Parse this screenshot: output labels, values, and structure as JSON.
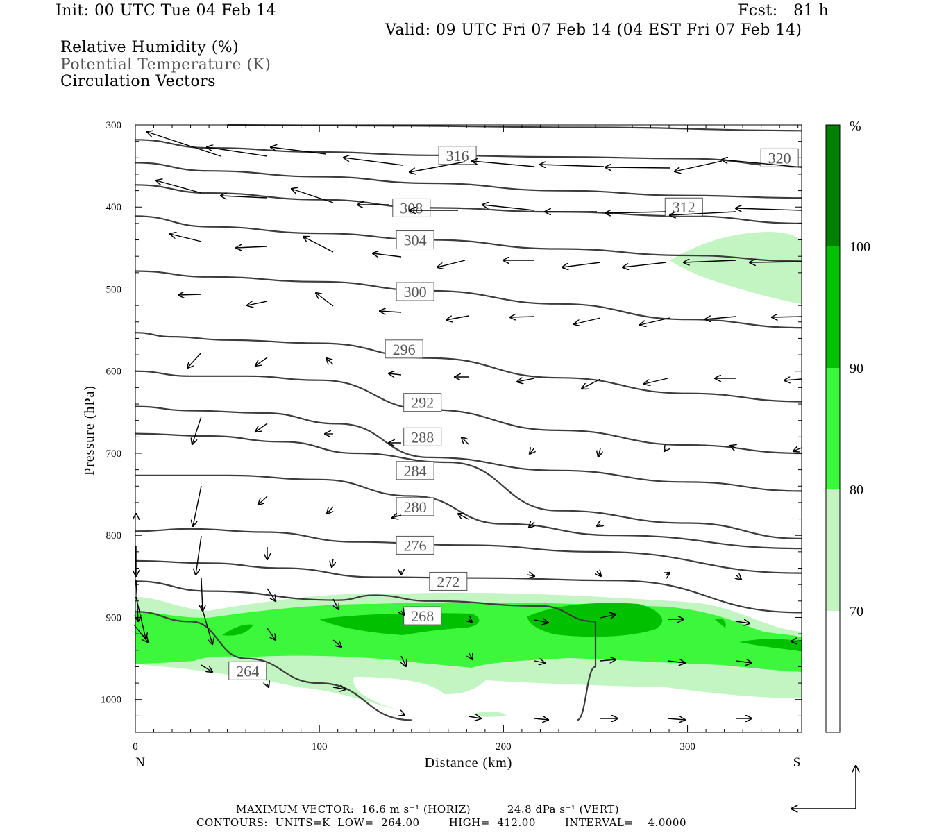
{
  "header": {
    "init": "Init: 00 UTC Tue 04 Feb 14",
    "fcst": "Fcst:   81 h",
    "valid": "Valid: 09 UTC Fri 07 Feb 14 (04 EST Fri 07 Feb 14)"
  },
  "fields": {
    "rh": "Relative Humidity (%)",
    "theta": "Potential Temperature (K)",
    "vectors": "Circulation Vectors"
  },
  "footer": {
    "max_vector": "MAXIMUM VECTOR:  16.6 m s⁻¹ (HORIZ)          24.8 dPa s⁻¹ (VERT)",
    "contours": "CONTOURS:  UNITS=K  LOW=  264.00        HIGH=  412.00        INTERVAL=    4.0000"
  },
  "colors": {
    "rh_70": "#c2f5c2",
    "rh_80": "#3df73d",
    "rh_90": "#00c000",
    "rh_100": "#008000",
    "contour": "#3c3c3c"
  },
  "chart_data": {
    "type": "cross-section",
    "xlabel": "Distance (km)",
    "ylabel": "Pressure (hPa)",
    "xlim": [
      0,
      362
    ],
    "ylim": [
      1040,
      300
    ],
    "x_ticks": [
      0,
      100,
      200,
      300
    ],
    "y_ticks": [
      300,
      400,
      500,
      600,
      700,
      800,
      900,
      1000
    ],
    "x_end_labels": {
      "left": "N",
      "right": "S"
    },
    "colorbar": {
      "unit": "%",
      "levels": [
        70,
        80,
        90,
        100
      ]
    },
    "theta_contours": [
      {
        "value": 320,
        "label": "320",
        "points": [
          [
            50,
            300
          ],
          [
            130,
            301
          ],
          [
            250,
            303
          ],
          [
            362,
            307
          ]
        ]
      },
      {
        "value": 316,
        "label": "316",
        "points": [
          [
            0,
            318
          ],
          [
            40,
            328
          ],
          [
            100,
            333
          ],
          [
            160,
            337
          ],
          [
            230,
            339
          ],
          [
            300,
            341
          ],
          [
            362,
            351
          ]
        ]
      },
      {
        "value": 312,
        "label": "312",
        "points": [
          [
            0,
            346
          ],
          [
            40,
            356
          ],
          [
            100,
            363
          ],
          [
            160,
            371
          ],
          [
            230,
            380
          ],
          [
            300,
            386
          ],
          [
            362,
            389
          ]
        ]
      },
      {
        "value": 308,
        "label": "308",
        "points": [
          [
            0,
            373
          ],
          [
            40,
            383
          ],
          [
            100,
            391
          ],
          [
            160,
            401
          ],
          [
            230,
            406
          ],
          [
            300,
            411
          ],
          [
            362,
            420
          ]
        ]
      },
      {
        "value": 304,
        "label": "304",
        "points": [
          [
            0,
            411
          ],
          [
            40,
            424
          ],
          [
            100,
            432
          ],
          [
            160,
            440
          ],
          [
            230,
            451
          ],
          [
            300,
            459
          ],
          [
            362,
            466
          ]
        ]
      },
      {
        "value": 300,
        "label": "300",
        "points": [
          [
            0,
            478
          ],
          [
            40,
            485
          ],
          [
            100,
            491
          ],
          [
            160,
            502
          ],
          [
            230,
            518
          ],
          [
            300,
            537
          ],
          [
            362,
            547
          ]
        ]
      },
      {
        "value": 296,
        "label": "296",
        "points": [
          [
            0,
            553
          ],
          [
            20,
            558
          ],
          [
            50,
            562
          ],
          [
            100,
            566
          ],
          [
            160,
            584
          ],
          [
            230,
            608
          ],
          [
            300,
            627
          ],
          [
            362,
            637
          ]
        ]
      },
      {
        "value": 292,
        "label": "292",
        "points": [
          [
            0,
            600
          ],
          [
            30,
            606
          ],
          [
            60,
            606
          ],
          [
            100,
            611
          ],
          [
            160,
            647
          ],
          [
            230,
            672
          ],
          [
            300,
            690
          ],
          [
            362,
            700
          ]
        ]
      },
      {
        "value": 288,
        "label": "288",
        "points": [
          [
            0,
            643
          ],
          [
            30,
            648
          ],
          [
            70,
            651
          ],
          [
            110,
            664
          ],
          [
            160,
            705
          ],
          [
            230,
            721
          ],
          [
            300,
            735
          ],
          [
            362,
            746
          ]
        ]
      },
      {
        "value": 284,
        "label": "284",
        "points": [
          [
            0,
            676
          ],
          [
            40,
            679
          ],
          [
            80,
            686
          ],
          [
            120,
            700
          ],
          [
            170,
            711
          ],
          [
            230,
            770
          ],
          [
            300,
            785
          ],
          [
            362,
            804
          ]
        ]
      },
      {
        "value": 280,
        "label": "280",
        "points": [
          [
            0,
            727
          ],
          [
            50,
            727
          ],
          [
            100,
            732
          ],
          [
            150,
            752
          ],
          [
            200,
            786
          ],
          [
            260,
            800
          ],
          [
            362,
            816
          ]
        ]
      },
      {
        "value": 276,
        "label": "276",
        "points": [
          [
            0,
            795
          ],
          [
            30,
            792
          ],
          [
            70,
            796
          ],
          [
            120,
            808
          ],
          [
            180,
            812
          ],
          [
            250,
            820
          ],
          [
            362,
            846
          ]
        ]
      },
      {
        "value": 272,
        "label": "272",
        "points": [
          [
            0,
            831
          ],
          [
            40,
            834
          ],
          [
            80,
            840
          ],
          [
            130,
            851
          ],
          [
            190,
            852
          ],
          [
            260,
            855
          ],
          [
            362,
            894
          ]
        ]
      },
      {
        "value": 268,
        "label": "268",
        "points": [
          [
            0,
            856
          ],
          [
            40,
            868
          ],
          [
            110,
            879
          ],
          [
            130,
            873
          ],
          [
            160,
            880
          ],
          [
            220,
            886
          ],
          [
            250,
            905
          ],
          [
            250,
            960
          ],
          [
            240,
            1025
          ]
        ]
      },
      {
        "value": 264,
        "label": "264",
        "points": [
          [
            0,
            893
          ],
          [
            30,
            905
          ],
          [
            60,
            950
          ],
          [
            100,
            980
          ],
          [
            150,
            1025
          ]
        ]
      }
    ],
    "label_positions_values": [
      [
        175,
        345
      ],
      [
        350,
        341
      ],
      [
        150,
        403
      ],
      [
        300,
        400
      ],
      [
        150,
        442
      ],
      [
        150,
        505
      ],
      [
        145,
        575
      ],
      [
        155,
        638
      ],
      [
        155,
        680
      ],
      [
        150,
        723
      ],
      [
        150,
        765
      ],
      [
        150,
        812
      ],
      [
        150,
        860
      ],
      [
        170,
        856
      ],
      [
        155,
        898
      ],
      [
        60,
        965
      ]
    ],
    "rh_regions_note": "Moist layer (RH>=70%) roughly 860-1010 hPa from 0-362 km; RH>=80% core 890-950 hPa; RH>=90% pockets near 100-140 km and 220-290 km (~895 hPa); upper moist tongue RH>=70% around 430-520 hPa east of 290 km"
  }
}
